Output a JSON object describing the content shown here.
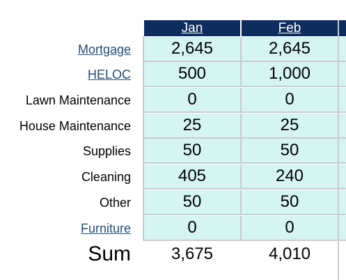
{
  "header": {
    "months": [
      "Jan",
      "Feb"
    ]
  },
  "rows": [
    {
      "label": "Mortgage",
      "link": true,
      "values": [
        "2,645",
        "2,645"
      ]
    },
    {
      "label": "HELOC",
      "link": true,
      "values": [
        "500",
        "1,000"
      ]
    },
    {
      "label": "Lawn Maintenance",
      "link": false,
      "values": [
        "0",
        "0"
      ]
    },
    {
      "label": "House Maintenance",
      "link": false,
      "values": [
        "25",
        "25"
      ]
    },
    {
      "label": "Supplies",
      "link": false,
      "values": [
        "50",
        "50"
      ]
    },
    {
      "label": "Cleaning",
      "link": false,
      "values": [
        "405",
        "240"
      ]
    },
    {
      "label": "Other",
      "link": false,
      "values": [
        "50",
        "50"
      ]
    },
    {
      "label": "Furniture",
      "link": true,
      "values": [
        "0",
        "0"
      ]
    }
  ],
  "sum": {
    "label": "Sum",
    "values": [
      "3,675",
      "4,010"
    ]
  },
  "colors": {
    "header_bg": "#0e2d5e",
    "cell_bg": "#d5f5f3",
    "link": "#1f4e79",
    "grid": "#c7cccc"
  }
}
